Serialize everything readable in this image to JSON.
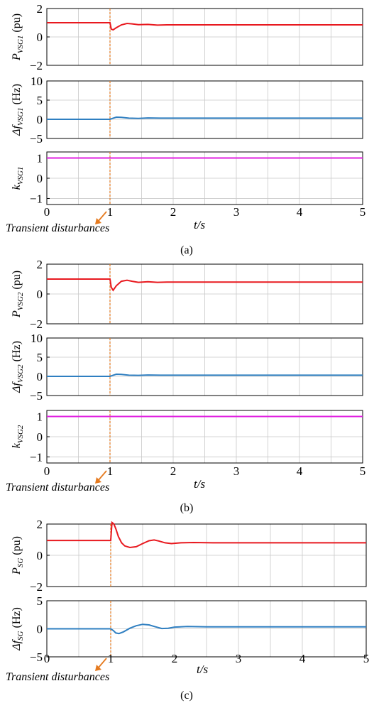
{
  "figures": [
    {
      "caption": "(a)",
      "xlabel": "t/s",
      "annotation": "Transient disturbances",
      "x_ticks": [
        "0",
        "1",
        "2",
        "3",
        "4",
        "5"
      ],
      "panels": [
        {
          "ylabel": {
            "main": "P",
            "sub": "VSG1",
            "unit": " (pu)"
          },
          "type": "line",
          "color": "#e8191f",
          "ylim": [
            -2,
            2
          ],
          "y_ticks": [
            {
              "v": 2,
              "t": "2"
            },
            {
              "v": 0,
              "t": "0"
            },
            {
              "v": -2,
              "t": "−2"
            }
          ],
          "x": [
            0,
            1.0,
            1.02,
            1.05,
            1.1,
            1.18,
            1.27,
            1.35,
            1.45,
            1.6,
            1.75,
            1.9,
            2.2,
            5.0
          ],
          "y": [
            1.0,
            1.0,
            0.55,
            0.5,
            0.65,
            0.85,
            0.95,
            0.92,
            0.86,
            0.88,
            0.83,
            0.85,
            0.85,
            0.85
          ]
        },
        {
          "ylabel": {
            "main": "Δf",
            "sub": "VSG1",
            "unit": " (Hz)"
          },
          "type": "line",
          "color": "#2f7fc1",
          "ylim": [
            -5,
            10
          ],
          "y_ticks": [
            {
              "v": 10,
              "t": "10"
            },
            {
              "v": 5,
              "t": "5"
            },
            {
              "v": 0,
              "t": "0"
            },
            {
              "v": -5,
              "t": "−5"
            }
          ],
          "x": [
            0,
            1.0,
            1.05,
            1.1,
            1.18,
            1.3,
            1.45,
            1.6,
            1.8,
            2.0,
            5.0
          ],
          "y": [
            0,
            0,
            0.3,
            0.55,
            0.5,
            0.3,
            0.25,
            0.35,
            0.3,
            0.3,
            0.3
          ]
        },
        {
          "ylabel": {
            "main": "k",
            "sub": "VSG1",
            "unit": ""
          },
          "type": "line",
          "color": "#e01fe0",
          "ylim": [
            -1.3,
            1.3
          ],
          "y_ticks": [
            {
              "v": 1,
              "t": "1"
            },
            {
              "v": 0,
              "t": "0"
            },
            {
              "v": -1,
              "t": "−1"
            }
          ],
          "x": [
            0,
            5
          ],
          "y": [
            1,
            1
          ]
        }
      ]
    },
    {
      "caption": "(b)",
      "xlabel": "t/s",
      "annotation": "Transient disturbances",
      "x_ticks": [
        "0",
        "1",
        "2",
        "3",
        "4",
        "5"
      ],
      "panels": [
        {
          "ylabel": {
            "main": "P",
            "sub": "VSG2",
            "unit": " (pu)"
          },
          "type": "line",
          "color": "#e8191f",
          "ylim": [
            -2,
            2
          ],
          "y_ticks": [
            {
              "v": 2,
              "t": "2"
            },
            {
              "v": 0,
              "t": "0"
            },
            {
              "v": -2,
              "t": "−2"
            }
          ],
          "x": [
            0,
            1.0,
            1.02,
            1.05,
            1.1,
            1.18,
            1.27,
            1.35,
            1.45,
            1.6,
            1.75,
            1.9,
            2.2,
            5.0
          ],
          "y": [
            1.0,
            1.0,
            0.45,
            0.25,
            0.55,
            0.85,
            0.92,
            0.85,
            0.78,
            0.82,
            0.78,
            0.8,
            0.8,
            0.8
          ]
        },
        {
          "ylabel": {
            "main": "Δf",
            "sub": "VSG2",
            "unit": " (Hz)"
          },
          "type": "line",
          "color": "#2f7fc1",
          "ylim": [
            -5,
            10
          ],
          "y_ticks": [
            {
              "v": 10,
              "t": "10"
            },
            {
              "v": 5,
              "t": "5"
            },
            {
              "v": 0,
              "t": "0"
            },
            {
              "v": -5,
              "t": "−5"
            }
          ],
          "x": [
            0,
            1.0,
            1.05,
            1.1,
            1.18,
            1.3,
            1.45,
            1.6,
            1.8,
            2.0,
            5.0
          ],
          "y": [
            0,
            0,
            0.3,
            0.55,
            0.5,
            0.3,
            0.25,
            0.35,
            0.3,
            0.3,
            0.3
          ]
        },
        {
          "ylabel": {
            "main": "k",
            "sub": "VSG2",
            "unit": ""
          },
          "type": "line",
          "color": "#e01fe0",
          "ylim": [
            -1.3,
            1.3
          ],
          "y_ticks": [
            {
              "v": 1,
              "t": "1"
            },
            {
              "v": 0,
              "t": "0"
            },
            {
              "v": -1,
              "t": "−1"
            }
          ],
          "x": [
            0,
            5
          ],
          "y": [
            1,
            1
          ]
        }
      ]
    },
    {
      "caption": "(c)",
      "xlabel": "t/s",
      "annotation": "Transient disturbances",
      "x_ticks": [
        "0",
        "1",
        "2",
        "3",
        "4",
        "5"
      ],
      "panels": [
        {
          "ylabel": {
            "main": "P",
            "sub": "SG",
            "unit": " (pu)"
          },
          "type": "line",
          "color": "#e8191f",
          "ylim": [
            -2,
            2
          ],
          "y_ticks": [
            {
              "v": 2,
              "t": "2"
            },
            {
              "v": 0,
              "t": "0"
            },
            {
              "v": -2,
              "t": "−2"
            }
          ],
          "x": [
            0,
            1.0,
            1.02,
            1.05,
            1.08,
            1.12,
            1.17,
            1.22,
            1.3,
            1.4,
            1.5,
            1.6,
            1.68,
            1.75,
            1.85,
            1.95,
            2.1,
            2.3,
            2.6,
            5.0
          ],
          "y": [
            0.95,
            0.95,
            2.1,
            2.0,
            1.7,
            1.2,
            0.8,
            0.6,
            0.5,
            0.55,
            0.75,
            0.93,
            0.98,
            0.92,
            0.8,
            0.75,
            0.8,
            0.82,
            0.8,
            0.8
          ]
        },
        {
          "ylabel": {
            "main": "Δf",
            "sub": "SG",
            "unit": " (Hz)"
          },
          "type": "line",
          "color": "#2f7fc1",
          "ylim": [
            -5,
            5
          ],
          "y_ticks": [
            {
              "v": 5,
              "t": "5"
            },
            {
              "v": 0,
              "t": "0"
            },
            {
              "v": -5,
              "t": "−5"
            }
          ],
          "x": [
            0,
            1.0,
            1.04,
            1.08,
            1.13,
            1.2,
            1.3,
            1.4,
            1.5,
            1.6,
            1.7,
            1.8,
            1.9,
            2.0,
            2.2,
            2.5,
            5.0
          ],
          "y": [
            0,
            0,
            -0.3,
            -0.75,
            -0.85,
            -0.55,
            0.1,
            0.55,
            0.8,
            0.7,
            0.35,
            0.05,
            0.1,
            0.3,
            0.4,
            0.35,
            0.35
          ]
        }
      ]
    }
  ]
}
